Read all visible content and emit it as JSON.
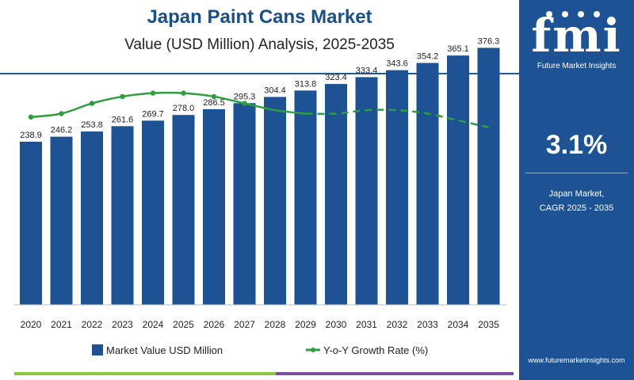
{
  "header": {
    "title": "Japan Paint Cans Market",
    "subtitle": "Value (USD Million) Analysis, 2025-2035"
  },
  "brand": {
    "logo_text": "fmi",
    "logo_subtext": "Future Market Insights",
    "url": "www.futuremarketinsights.com",
    "panel_color": "#1d5294"
  },
  "kpi": {
    "value": "3.1%",
    "label_line1": "Japan Market,",
    "label_line2": "CAGR 2025 - 2035"
  },
  "chart_data": {
    "type": "bar",
    "categories": [
      "2020",
      "2021",
      "2022",
      "2023",
      "2024",
      "2025",
      "2026",
      "2027",
      "2028",
      "2029",
      "2030",
      "2031",
      "2032",
      "2033",
      "2034",
      "2035"
    ],
    "series": [
      {
        "name": "Market Value USD Million",
        "type": "bar",
        "color": "#1d5294",
        "values": [
          238.9,
          246.2,
          253.8,
          261.6,
          269.7,
          278.0,
          286.5,
          295.3,
          304.4,
          313.8,
          323.4,
          333.4,
          343.6,
          354.2,
          365.1,
          376.3
        ],
        "labels": [
          "238.9",
          "246.2",
          "253.8",
          "261.6",
          "269.7",
          "278.0",
          "286.5",
          "295.3",
          "304.4",
          "313.8",
          "323.4",
          "333.4",
          "343.6",
          "354.2",
          "365.1",
          "376.3"
        ]
      },
      {
        "name": "Y-o-Y Growth Rate (%)",
        "type": "line",
        "color": "#2e9e3e",
        "values": [
          3.05,
          3.06,
          3.09,
          3.11,
          3.12,
          3.12,
          3.11,
          3.09,
          3.07,
          3.06,
          3.06,
          3.07,
          3.07,
          3.06,
          3.04,
          3.02
        ]
      }
    ],
    "ylim": [
      0,
      400
    ],
    "y2lim": [
      2.5,
      3.3
    ],
    "legend": "bottom",
    "grid": false
  }
}
